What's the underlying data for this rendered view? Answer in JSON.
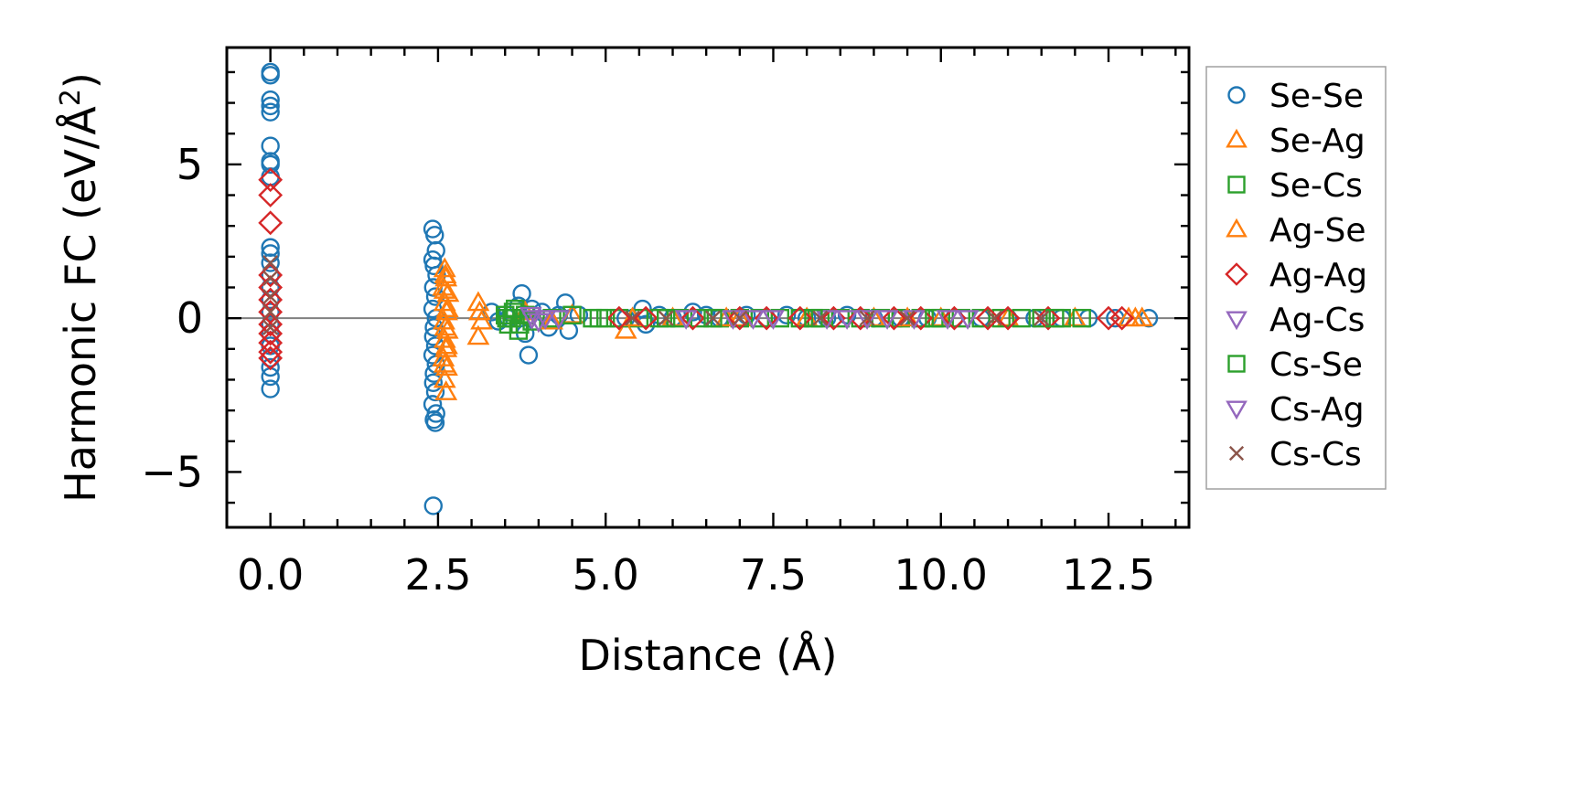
{
  "chart_data": {
    "type": "scatter",
    "title": "",
    "xlabel": "Distance (Å)",
    "ylabel": "Harmonic FC (eV/Å",
    "ylabel_sup": "2",
    "ylabel_end": ")",
    "xlim": [
      -0.65,
      13.7
    ],
    "ylim": [
      -6.8,
      8.8
    ],
    "xticks": [
      0.0,
      2.5,
      5.0,
      7.5,
      10.0,
      12.5
    ],
    "xtick_labels": [
      "0.0",
      "2.5",
      "5.0",
      "7.5",
      "10.0",
      "12.5"
    ],
    "yticks": [
      -5,
      0,
      5
    ],
    "ytick_labels": [
      "−5",
      "0",
      "5"
    ],
    "hline": 0,
    "legend_position": "outside-right",
    "series": [
      {
        "name": "Se-Se",
        "marker": "circle",
        "color": "#1f77b4",
        "points": [
          [
            0,
            8.0
          ],
          [
            0,
            7.9
          ],
          [
            0,
            7.1
          ],
          [
            0,
            6.9
          ],
          [
            0,
            6.7
          ],
          [
            0,
            5.6
          ],
          [
            0,
            5.1
          ],
          [
            0,
            5.0
          ],
          [
            0,
            4.6
          ],
          [
            0,
            2.3
          ],
          [
            0,
            2.1
          ],
          [
            0,
            1.8
          ],
          [
            0,
            1.4
          ],
          [
            0,
            1.0
          ],
          [
            0,
            0.6
          ],
          [
            0,
            0.2
          ],
          [
            0,
            -0.2
          ],
          [
            0,
            -0.5
          ],
          [
            0,
            -0.9
          ],
          [
            0,
            -1.3
          ],
          [
            0,
            -1.6
          ],
          [
            0,
            -1.9
          ],
          [
            0,
            -2.3
          ],
          [
            2.42,
            2.9
          ],
          [
            2.45,
            2.7
          ],
          [
            2.47,
            2.2
          ],
          [
            2.42,
            1.9
          ],
          [
            2.44,
            1.7
          ],
          [
            2.48,
            1.4
          ],
          [
            2.43,
            1.0
          ],
          [
            2.46,
            0.7
          ],
          [
            2.42,
            0.3
          ],
          [
            2.47,
            0.0
          ],
          [
            2.44,
            -0.3
          ],
          [
            2.43,
            -0.6
          ],
          [
            2.46,
            -0.9
          ],
          [
            2.42,
            -1.2
          ],
          [
            2.47,
            -1.5
          ],
          [
            2.44,
            -1.8
          ],
          [
            2.43,
            -2.1
          ],
          [
            2.46,
            -2.4
          ],
          [
            2.42,
            -2.8
          ],
          [
            2.47,
            -3.1
          ],
          [
            2.44,
            -3.3
          ],
          [
            2.46,
            -3.4
          ],
          [
            2.43,
            -6.1
          ],
          [
            3.3,
            0.2
          ],
          [
            3.4,
            -0.1
          ],
          [
            3.55,
            0.0
          ],
          [
            3.7,
            0.4
          ],
          [
            3.75,
            0.8
          ],
          [
            3.8,
            -0.5
          ],
          [
            3.85,
            -1.2
          ],
          [
            3.9,
            0.3
          ],
          [
            4.05,
            0.2
          ],
          [
            4.15,
            -0.3
          ],
          [
            4.3,
            0.1
          ],
          [
            4.4,
            0.5
          ],
          [
            4.45,
            -0.4
          ],
          [
            4.6,
            0.1
          ],
          [
            5.3,
            0.0
          ],
          [
            5.55,
            0.3
          ],
          [
            5.6,
            -0.2
          ],
          [
            5.8,
            0.1
          ],
          [
            6.0,
            0.0
          ],
          [
            6.3,
            0.2
          ],
          [
            6.5,
            0.1
          ],
          [
            6.7,
            0.0
          ],
          [
            7.1,
            0.1
          ],
          [
            7.4,
            0.0
          ],
          [
            7.7,
            0.1
          ],
          [
            8.0,
            0.0
          ],
          [
            8.3,
            0.0
          ],
          [
            8.6,
            0.1
          ],
          [
            9.0,
            0.0
          ],
          [
            9.4,
            0.0
          ],
          [
            9.8,
            0.0
          ],
          [
            10.2,
            0.0
          ],
          [
            10.6,
            0.0
          ],
          [
            11.0,
            0.0
          ],
          [
            11.4,
            0.0
          ],
          [
            11.8,
            0.0
          ],
          [
            12.2,
            0.0
          ],
          [
            12.6,
            0.0
          ],
          [
            13.1,
            0.0
          ]
        ]
      },
      {
        "name": "Se-Ag",
        "marker": "triangle-up",
        "color": "#ff7f0e",
        "points": [
          [
            2.6,
            1.6
          ],
          [
            2.62,
            1.3
          ],
          [
            2.58,
            1.0
          ],
          [
            2.65,
            0.8
          ],
          [
            2.6,
            0.5
          ],
          [
            2.63,
            0.2
          ],
          [
            2.59,
            -0.1
          ],
          [
            2.64,
            -0.4
          ],
          [
            2.6,
            -0.7
          ],
          [
            2.62,
            -1.0
          ],
          [
            2.58,
            -1.3
          ],
          [
            2.63,
            -1.6
          ],
          [
            2.6,
            -2.0
          ],
          [
            2.62,
            -2.4
          ],
          [
            3.1,
            0.5
          ],
          [
            3.15,
            -0.1
          ],
          [
            3.1,
            -0.6
          ],
          [
            3.8,
            0.2
          ],
          [
            4.2,
            -0.1
          ],
          [
            4.5,
            0.1
          ],
          [
            5.3,
            -0.4
          ],
          [
            6.0,
            0.0
          ],
          [
            7.0,
            0.0
          ],
          [
            8.0,
            0.0
          ],
          [
            9.0,
            0.0
          ],
          [
            10.0,
            0.0
          ],
          [
            11.0,
            0.0
          ],
          [
            12.0,
            0.0
          ],
          [
            12.9,
            0.0
          ],
          [
            13.0,
            0.0
          ]
        ]
      },
      {
        "name": "Se-Cs",
        "marker": "square",
        "color": "#2ca02c",
        "points": [
          [
            3.5,
            0.1
          ],
          [
            3.55,
            -0.2
          ],
          [
            3.6,
            0.0
          ],
          [
            3.65,
            0.3
          ],
          [
            3.7,
            -0.4
          ],
          [
            3.8,
            0.1
          ],
          [
            3.9,
            -0.1
          ],
          [
            4.2,
            0.0
          ],
          [
            4.5,
            0.1
          ],
          [
            4.8,
            0.0
          ],
          [
            5.0,
            0.0
          ],
          [
            5.2,
            0.0
          ],
          [
            5.5,
            0.0
          ],
          [
            5.8,
            0.0
          ],
          [
            6.1,
            0.0
          ],
          [
            6.4,
            0.0
          ],
          [
            6.7,
            0.0
          ],
          [
            7.0,
            0.0
          ],
          [
            7.3,
            0.0
          ],
          [
            7.6,
            0.0
          ],
          [
            7.9,
            0.0
          ],
          [
            8.2,
            0.0
          ],
          [
            8.5,
            0.0
          ],
          [
            8.8,
            0.0
          ],
          [
            9.1,
            0.0
          ],
          [
            9.4,
            0.0
          ],
          [
            9.7,
            0.0
          ],
          [
            10.0,
            0.0
          ],
          [
            10.3,
            0.0
          ],
          [
            10.6,
            0.0
          ],
          [
            10.9,
            0.0
          ],
          [
            11.2,
            0.0
          ],
          [
            11.5,
            0.0
          ],
          [
            11.8,
            0.0
          ],
          [
            12.1,
            0.0
          ]
        ]
      },
      {
        "name": "Ag-Se",
        "marker": "triangle-up",
        "color": "#ff7f0e",
        "points": [
          [
            2.61,
            1.4
          ],
          [
            2.6,
            0.9
          ],
          [
            2.64,
            0.3
          ],
          [
            2.61,
            -0.3
          ],
          [
            2.63,
            -0.9
          ],
          [
            2.6,
            -1.5
          ],
          [
            3.12,
            0.2
          ],
          [
            5.4,
            0.0
          ],
          [
            6.8,
            0.0
          ],
          [
            9.5,
            0.0
          ],
          [
            12.8,
            0.0
          ]
        ]
      },
      {
        "name": "Ag-Ag",
        "marker": "diamond",
        "color": "#d62728",
        "points": [
          [
            0,
            4.5
          ],
          [
            0,
            4.0
          ],
          [
            0,
            3.1
          ],
          [
            0,
            1.4
          ],
          [
            0,
            1.0
          ],
          [
            0,
            0.6
          ],
          [
            0,
            0.2
          ],
          [
            0,
            -0.2
          ],
          [
            0,
            -0.5
          ],
          [
            0,
            -0.8
          ],
          [
            0,
            -1.1
          ],
          [
            0,
            -1.3
          ],
          [
            5.2,
            0.0
          ],
          [
            5.6,
            0.0
          ],
          [
            6.3,
            0.0
          ],
          [
            7.0,
            0.0
          ],
          [
            7.4,
            0.0
          ],
          [
            7.9,
            0.0
          ],
          [
            8.4,
            0.0
          ],
          [
            8.8,
            0.0
          ],
          [
            9.3,
            0.0
          ],
          [
            9.7,
            0.0
          ],
          [
            10.2,
            0.0
          ],
          [
            10.7,
            0.0
          ],
          [
            11.0,
            0.0
          ],
          [
            11.6,
            0.0
          ],
          [
            12.5,
            0.0
          ],
          [
            12.7,
            0.0
          ]
        ]
      },
      {
        "name": "Ag-Cs",
        "marker": "triangle-down",
        "color": "#9467bd",
        "points": [
          [
            3.9,
            0.0
          ],
          [
            4.0,
            -0.1
          ],
          [
            4.3,
            0.0
          ],
          [
            6.9,
            0.0
          ],
          [
            7.5,
            0.0
          ],
          [
            8.3,
            0.0
          ],
          [
            8.9,
            0.0
          ],
          [
            9.6,
            0.0
          ],
          [
            10.4,
            0.0
          ]
        ]
      },
      {
        "name": "Cs-Se",
        "marker": "square",
        "color": "#2ca02c",
        "points": [
          [
            3.52,
            0.0
          ],
          [
            3.62,
            0.2
          ],
          [
            3.72,
            -0.2
          ],
          [
            4.9,
            0.0
          ],
          [
            5.9,
            0.0
          ],
          [
            6.6,
            0.0
          ],
          [
            8.1,
            0.0
          ],
          [
            9.9,
            0.0
          ],
          [
            11.7,
            0.0
          ]
        ]
      },
      {
        "name": "Cs-Ag",
        "marker": "triangle-down",
        "color": "#9467bd",
        "points": [
          [
            3.88,
            0.1
          ],
          [
            4.1,
            0.0
          ],
          [
            6.2,
            0.0
          ],
          [
            7.2,
            0.0
          ],
          [
            8.6,
            0.0
          ],
          [
            9.2,
            0.0
          ],
          [
            10.1,
            0.0
          ]
        ]
      },
      {
        "name": "Cs-Cs",
        "marker": "x",
        "color": "#8c564b",
        "points": [
          [
            0,
            1.8
          ],
          [
            0,
            1.3
          ],
          [
            0,
            0.7
          ],
          [
            0,
            0.2
          ],
          [
            0,
            -0.3
          ],
          [
            5.4,
            0.0
          ],
          [
            5.9,
            0.0
          ],
          [
            6.6,
            0.0
          ],
          [
            7.0,
            0.0
          ],
          [
            8.2,
            0.0
          ],
          [
            8.9,
            0.0
          ],
          [
            9.5,
            0.0
          ],
          [
            10.8,
            0.0
          ],
          [
            11.5,
            0.0
          ]
        ]
      }
    ]
  }
}
